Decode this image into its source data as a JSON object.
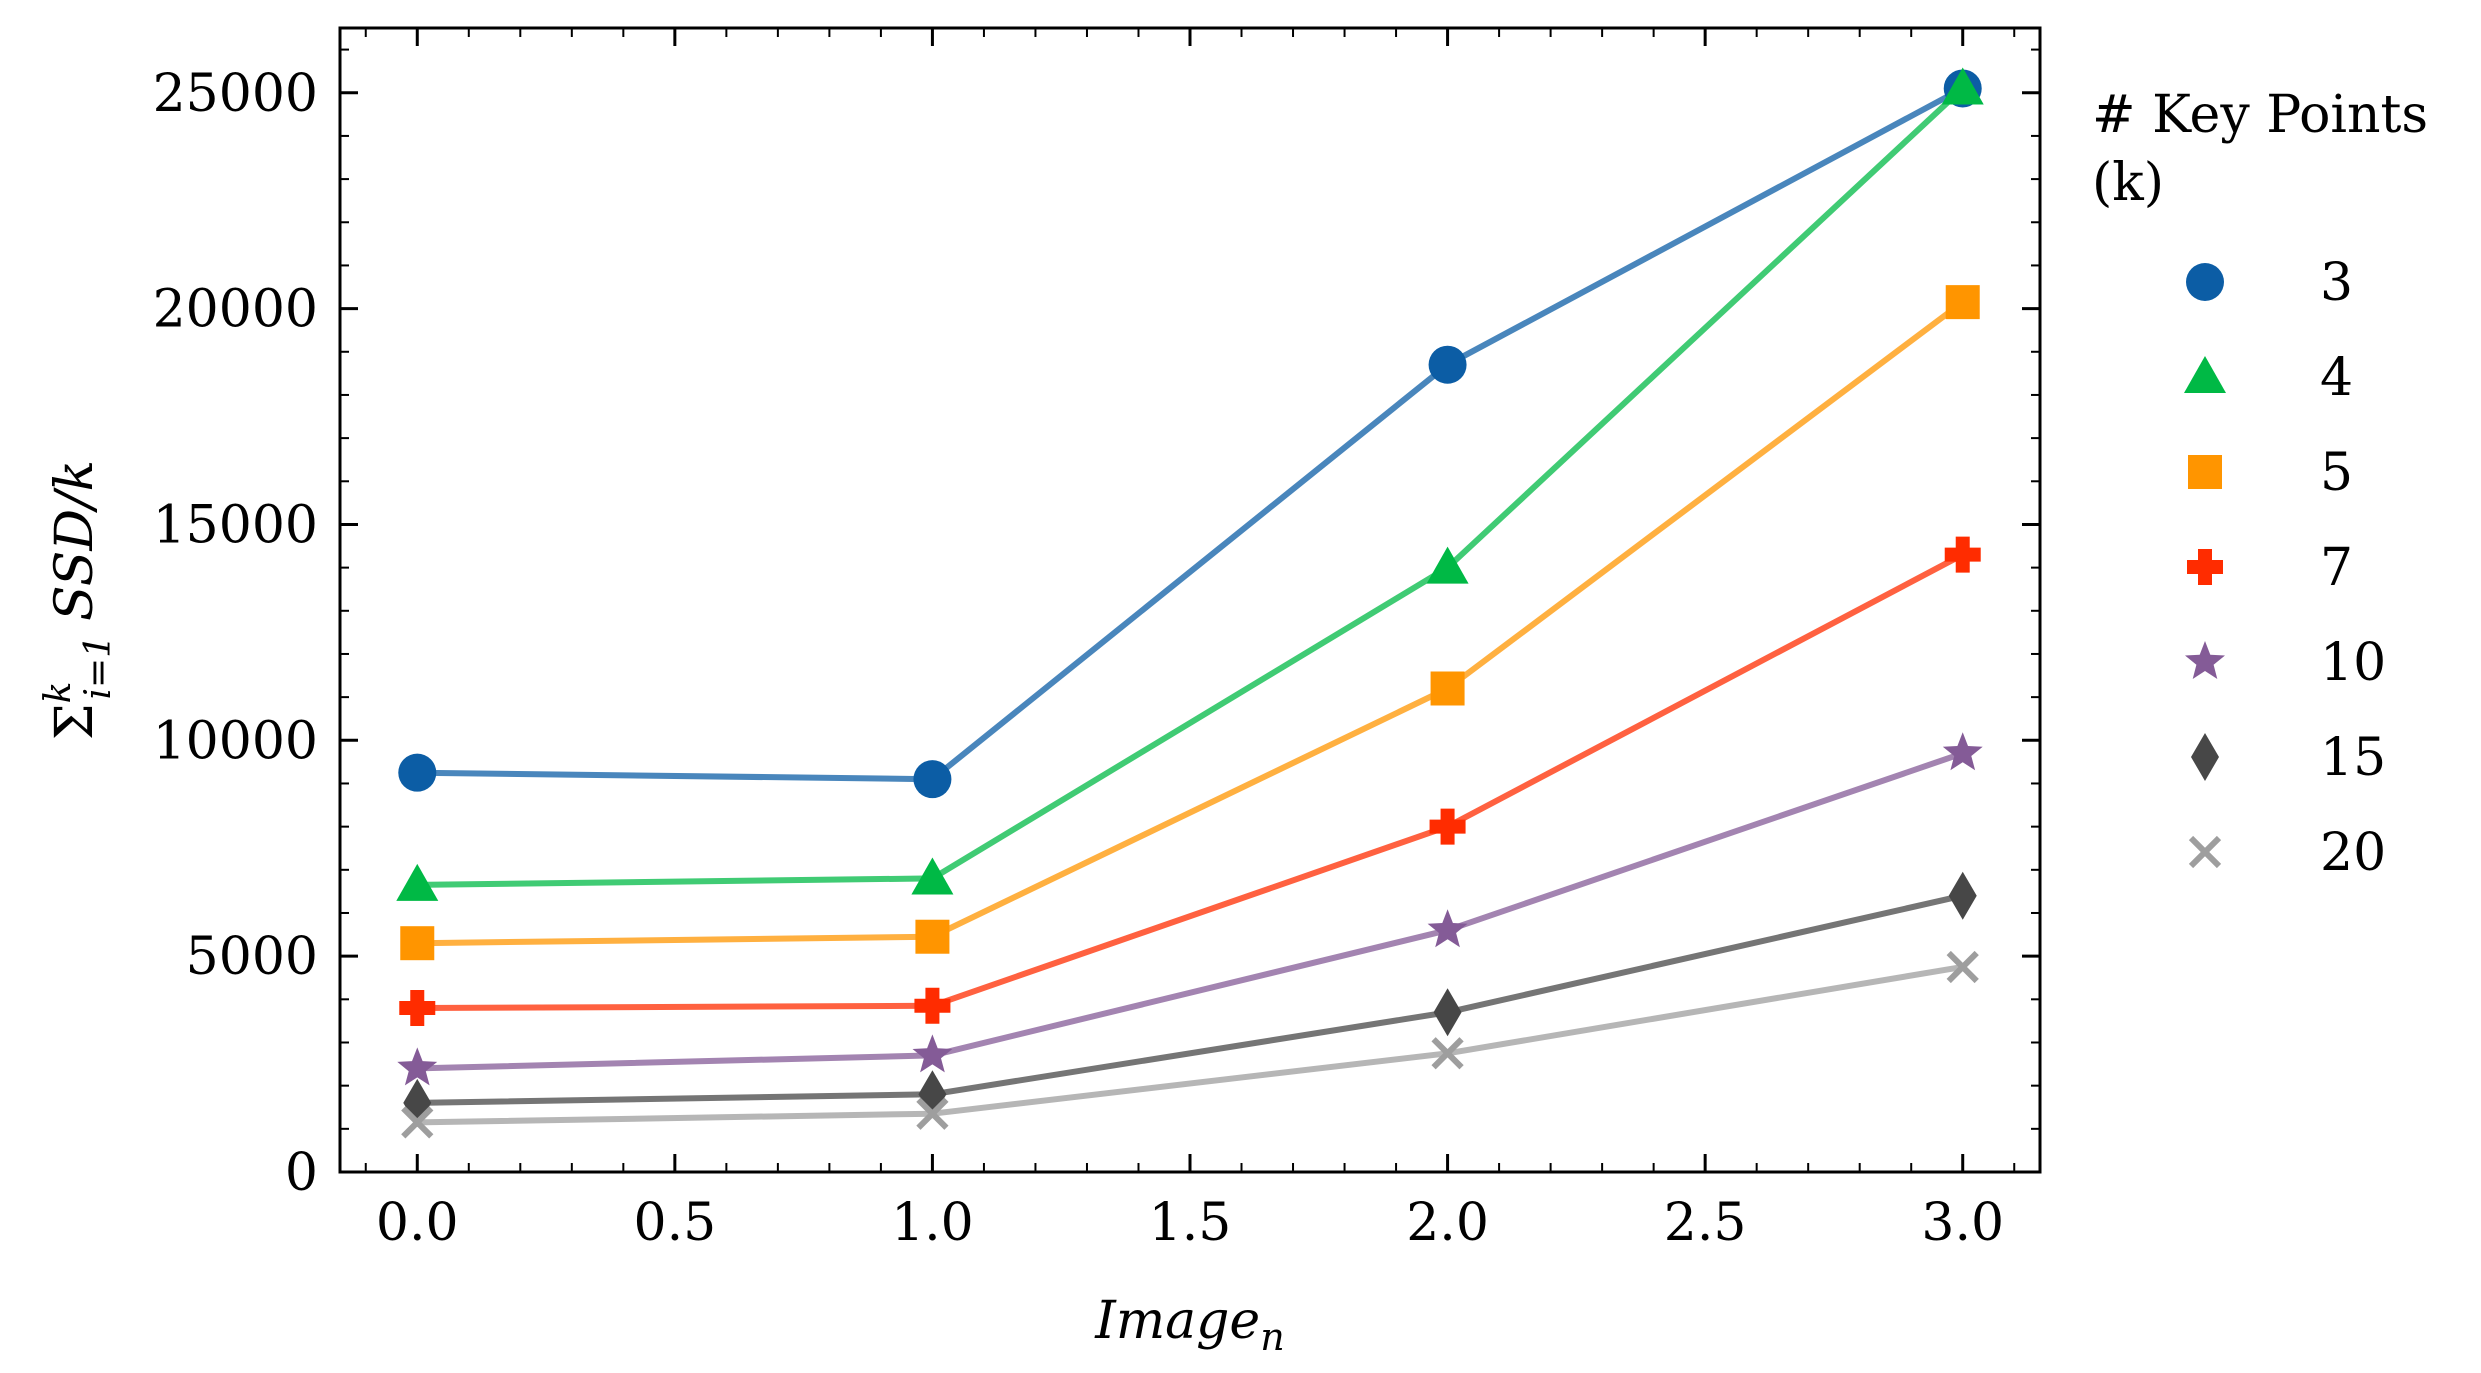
{
  "chart_data": {
    "type": "line",
    "title": "",
    "xlabel": "Image",
    "xlabel_subscript": "n",
    "ylabel": "SSD/k",
    "ylabel_prefix": "Σ",
    "ylabel_sup": "k",
    "ylabel_sub": "i=1",
    "x": [
      0,
      1,
      2,
      3
    ],
    "xlim": [
      -0.15,
      3.15
    ],
    "ylim": [
      0,
      26500
    ],
    "xticks": [
      0.0,
      0.5,
      1.0,
      1.5,
      2.0,
      2.5,
      3.0
    ],
    "xtick_labels": [
      "0.0",
      "0.5",
      "1.0",
      "1.5",
      "2.0",
      "2.5",
      "3.0"
    ],
    "yticks": [
      0,
      5000,
      10000,
      15000,
      20000,
      25000
    ],
    "ytick_labels": [
      "0",
      "5000",
      "10000",
      "15000",
      "20000",
      "25000"
    ],
    "grid": false,
    "legend_title": "# Key Points (k)",
    "legend_title_lines": [
      "# Key Points",
      "(k)"
    ],
    "legend_placement": "outside-right",
    "series": [
      {
        "name": "3",
        "values": [
          9250,
          9100,
          18700,
          25100
        ],
        "color": "#0C5DA5",
        "marker": "circle"
      },
      {
        "name": "4",
        "values": [
          6650,
          6800,
          14000,
          25100
        ],
        "color": "#00B945",
        "marker": "triangle"
      },
      {
        "name": "5",
        "values": [
          5300,
          5450,
          11200,
          20150
        ],
        "color": "#FF9500",
        "marker": "square"
      },
      {
        "name": "7",
        "values": [
          3800,
          3850,
          8000,
          14300
        ],
        "color": "#FF2C00",
        "marker": "plus"
      },
      {
        "name": "10",
        "values": [
          2400,
          2700,
          5600,
          9700
        ],
        "color": "#845B97",
        "marker": "star"
      },
      {
        "name": "15",
        "values": [
          1600,
          1800,
          3700,
          6400
        ],
        "color": "#474747",
        "marker": "diamond"
      },
      {
        "name": "20",
        "values": [
          1150,
          1350,
          2750,
          4750
        ],
        "color": "#9E9E9E",
        "marker": "x"
      }
    ]
  }
}
